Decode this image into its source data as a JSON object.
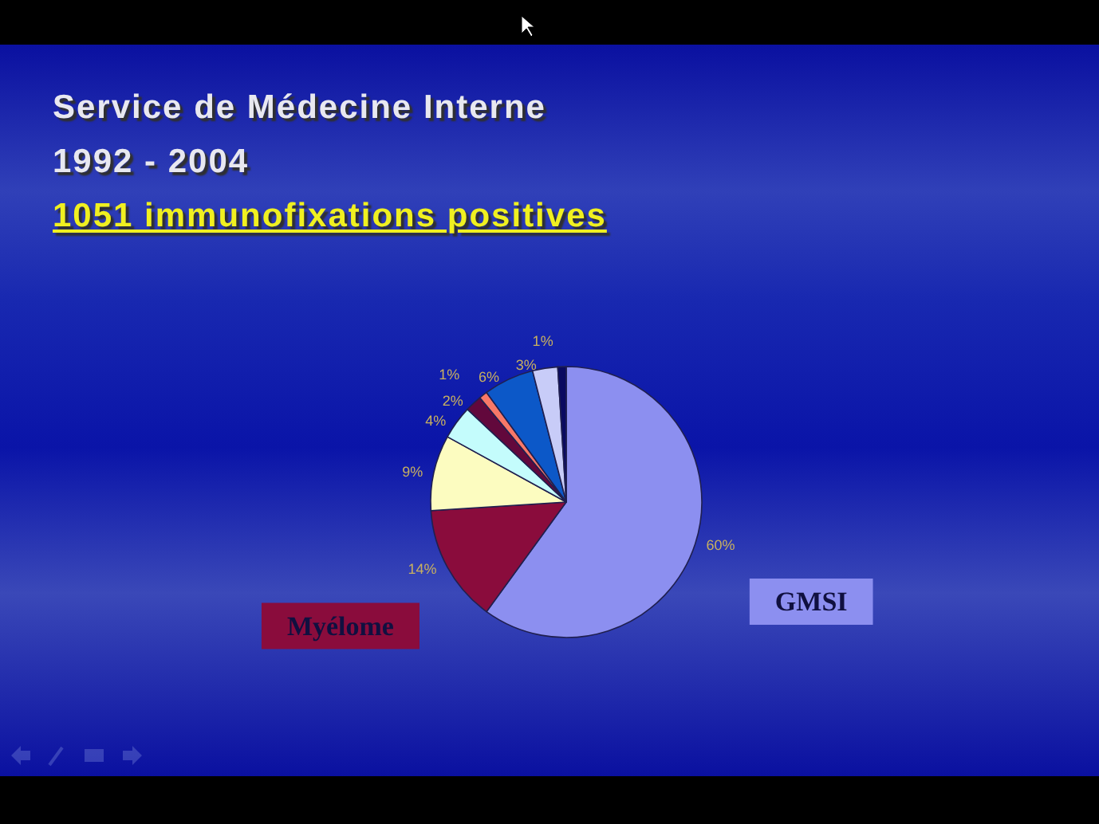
{
  "chart_data": {
    "type": "pie",
    "title": "Service de Médecine Interne",
    "subtitle": "1992 - 2004",
    "annotations": [
      "1051 immunofixations positives"
    ],
    "categories": [
      "GMSI",
      "Myélome",
      null,
      null,
      null,
      null,
      null,
      null,
      null
    ],
    "values": [
      60,
      14,
      9,
      4,
      2,
      1,
      6,
      3,
      1
    ],
    "value_labels": [
      "60%",
      "14%",
      "9%",
      "4%",
      "2%",
      "1%",
      "6%",
      "3%",
      "1%"
    ],
    "colors": [
      "#8c8ff0",
      "#8a0c3c",
      "#fcfcc0",
      "#c4fcfc",
      "#62083c",
      "#f87868",
      "#0c58c8",
      "#c8ccf8",
      "#0a0a60"
    ]
  }
}
